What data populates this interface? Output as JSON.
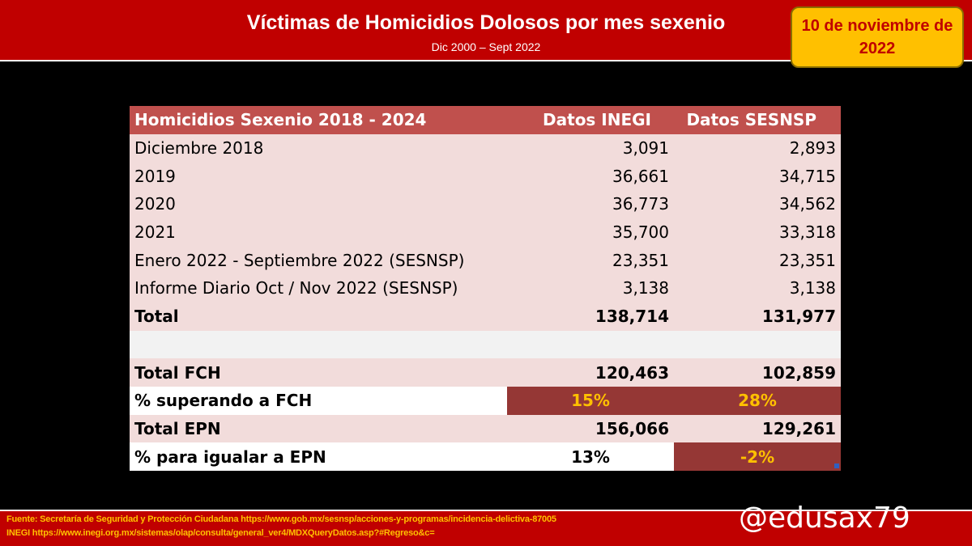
{
  "header": {
    "title": "Víctimas de Homicidios Dolosos por mes sexenio",
    "subtitle": "Dic 2000 – Sept 2022",
    "date_line1": "10 de noviembre de",
    "date_line2": "2022"
  },
  "chart_data": {
    "type": "table",
    "columns": [
      "Homicidios Sexenio 2018 - 2024",
      "Datos INEGI",
      "Datos SESNSP"
    ],
    "rows": [
      [
        "Diciembre 2018",
        "3,091",
        "2,893"
      ],
      [
        "2019",
        "36,661",
        "34,715"
      ],
      [
        "2020",
        "36,773",
        "34,562"
      ],
      [
        "2021",
        "35,700",
        "33,318"
      ],
      [
        "Enero 2022 - Septiembre 2022 (SESNSP)",
        "23,351",
        "23,351"
      ],
      [
        "Informe Diario Oct / Nov 2022 (SESNSP)",
        "3,138",
        "3,138"
      ],
      [
        "Total",
        "138,714",
        "131,977"
      ],
      [
        "",
        "",
        ""
      ],
      [
        "Total FCH",
        "120,463",
        "102,859"
      ],
      [
        "% superando a FCH",
        "15%",
        "28%"
      ],
      [
        "Total EPN",
        "156,066",
        "129,261"
      ],
      [
        "% para igualar a EPN",
        "13%",
        "-2%"
      ]
    ]
  },
  "footer": {
    "source_line1": "Fuente: Secretaría de Seguridad y Protección Ciudadana https://www.gob.mx/sesnsp/acciones-y-programas/incidencia-delictiva-87005",
    "source_line2": "INEGI https://www.inegi.org.mx/sistemas/olap/consulta/general_ver4/MDXQueryDatos.asp?#Regreso&c=",
    "handle": "@edusax79"
  },
  "colors": {
    "banner": "#c00000",
    "badge": "#ffc000",
    "table_header": "#c0504d",
    "row_light": "#f2dcdb",
    "highlight_cell": "#953735",
    "highlight_text": "#ffc000"
  }
}
